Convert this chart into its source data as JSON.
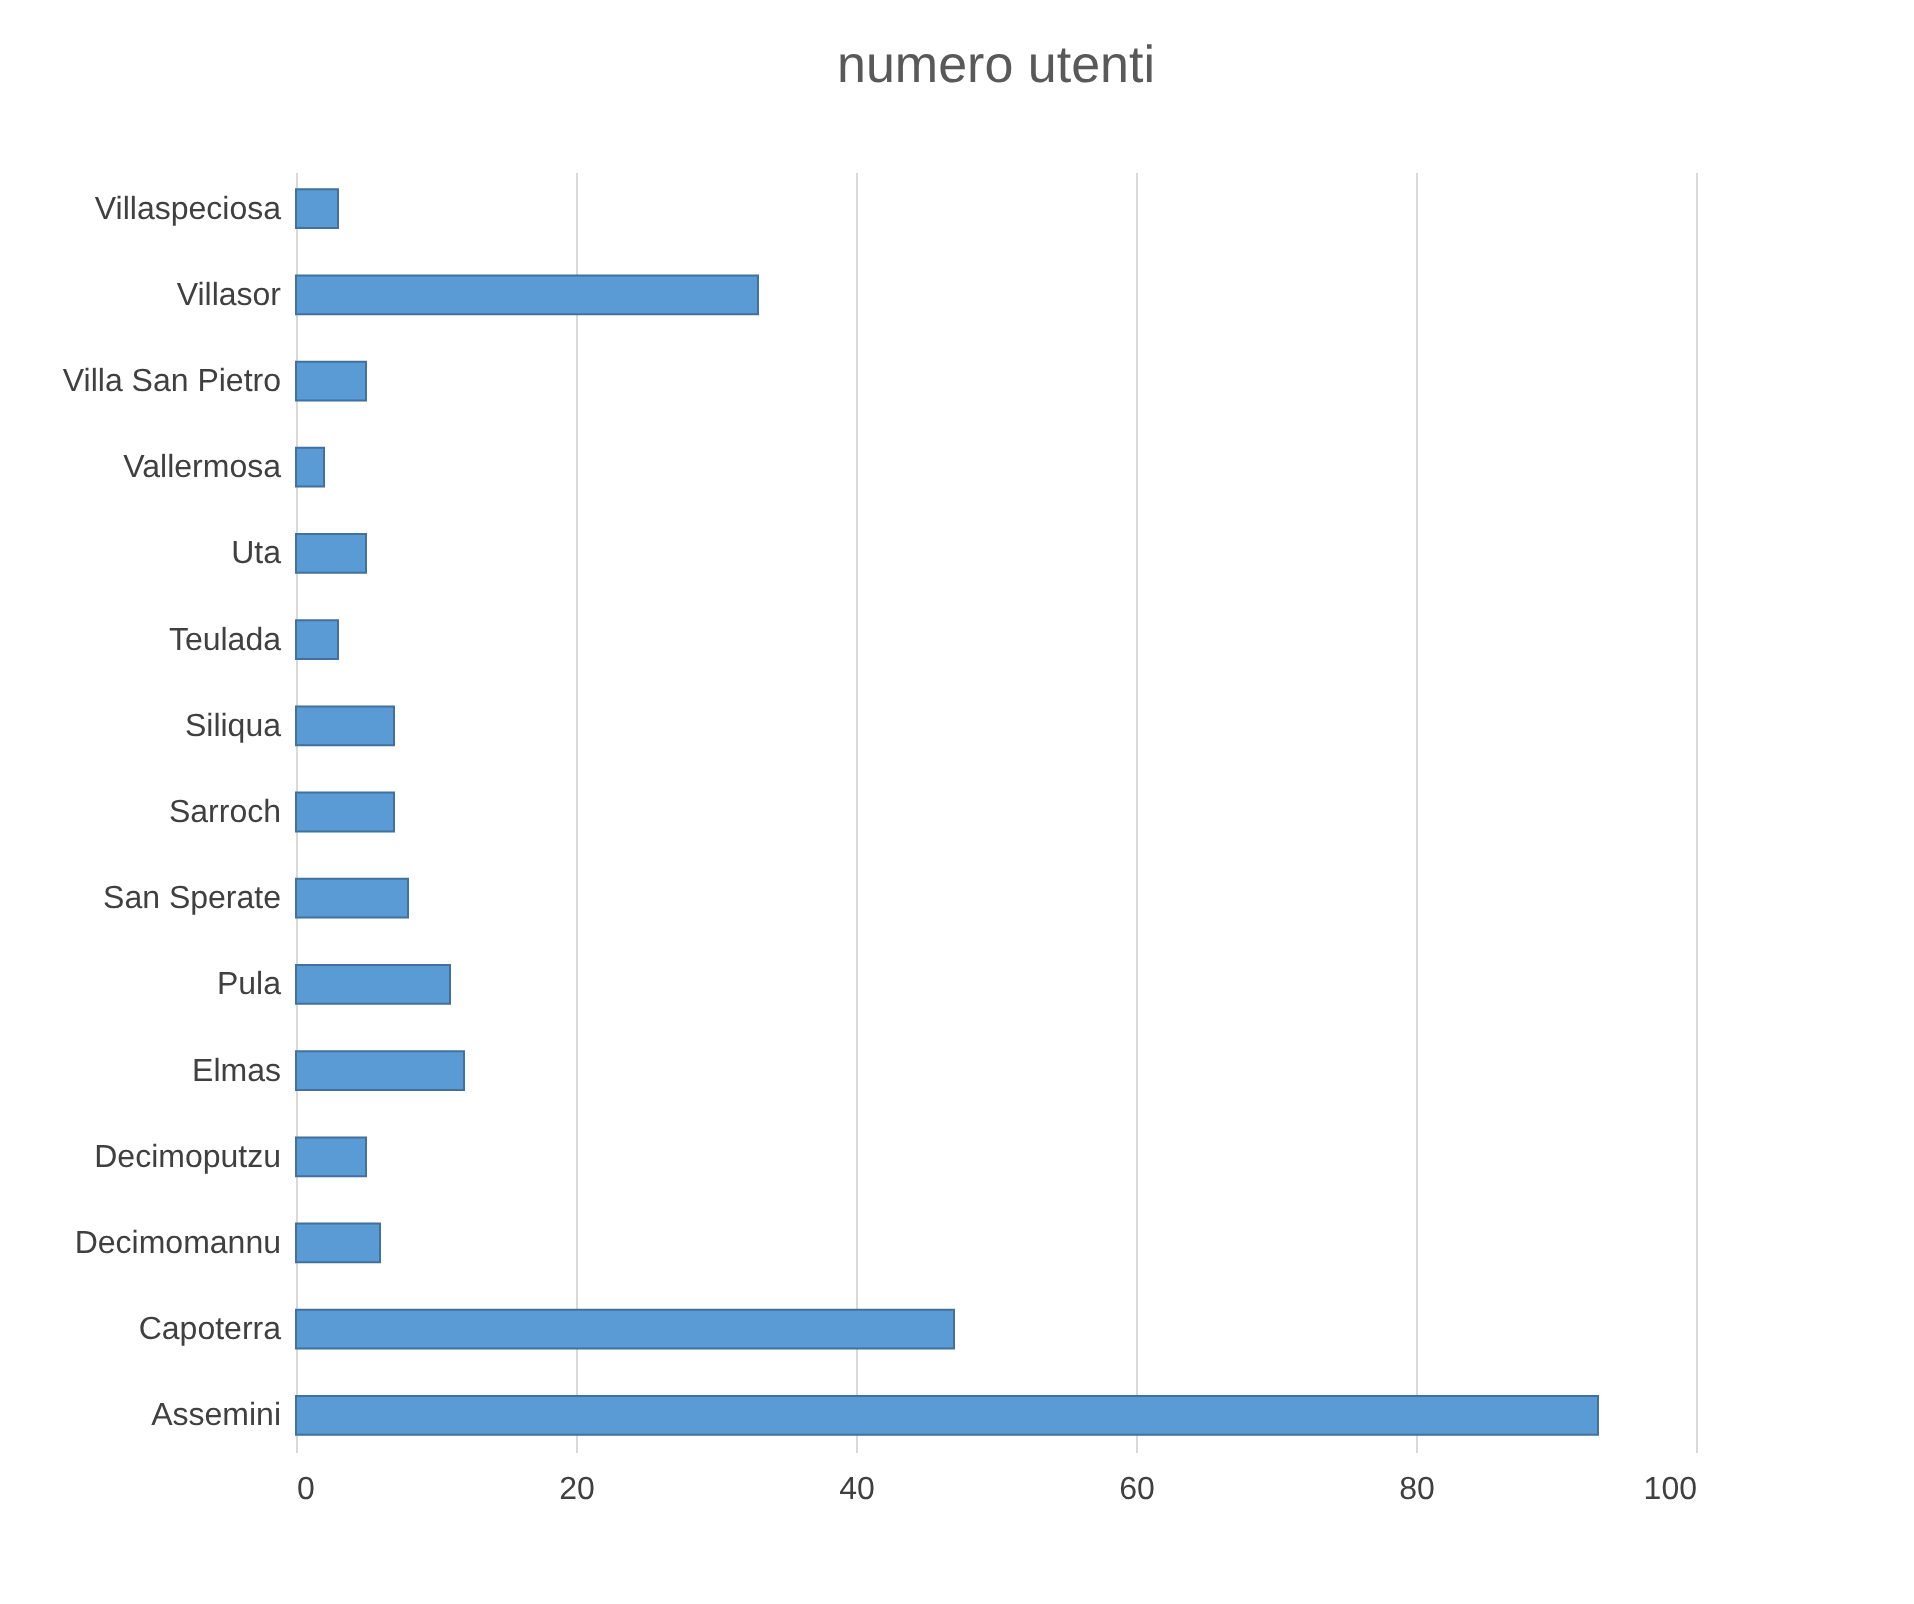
{
  "chart_data": {
    "type": "bar",
    "orientation": "horizontal",
    "title": "numero utenti",
    "categories": [
      "Villaspeciosa",
      "Villasor",
      "Villa San Pietro",
      "Vallermosa",
      "Uta",
      "Teulada",
      "Siliqua",
      "Sarroch",
      "San Sperate",
      "Pula",
      "Elmas",
      "Decimoputzu",
      "Decimomannu",
      "Capoterra",
      "Assemini"
    ],
    "values": [
      3,
      33,
      5,
      2,
      5,
      3,
      7,
      7,
      8,
      11,
      12,
      5,
      6,
      47,
      93
    ],
    "color": "#5b9bd5",
    "xlim": [
      0,
      100
    ],
    "xticks": [
      0,
      20,
      40,
      60,
      80,
      100
    ],
    "grid": "x"
  }
}
